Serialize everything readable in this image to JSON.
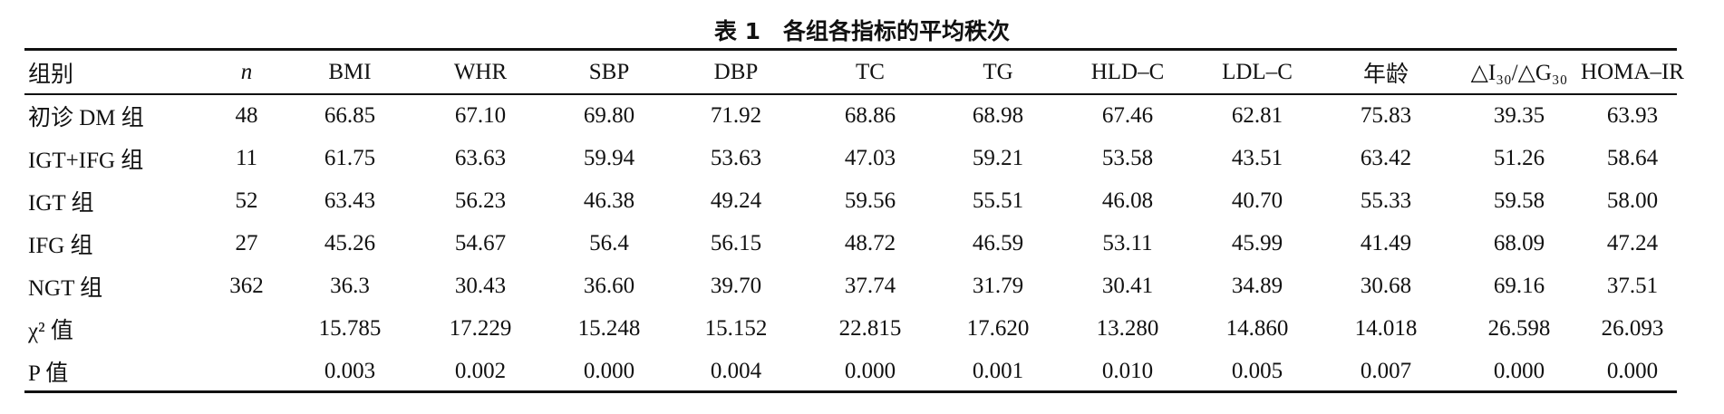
{
  "table": {
    "title": "表 1　各组各指标的平均秩次",
    "header": [
      "组别",
      "n",
      "BMI",
      "WHR",
      "SBP",
      "DBP",
      "TC",
      "TG",
      "HLD–C",
      "LDL–C",
      "年龄",
      "△I₃₀/△G₃₀",
      "HOMA–IR"
    ],
    "rows": [
      [
        "初诊 DM 组",
        "48",
        "66.85",
        "67.10",
        "69.80",
        "71.92",
        "68.86",
        "68.98",
        "67.46",
        "62.81",
        "75.83",
        "39.35",
        "63.93"
      ],
      [
        "IGT+IFG 组",
        "11",
        "61.75",
        "63.63",
        "59.94",
        "53.63",
        "47.03",
        "59.21",
        "53.58",
        "43.51",
        "63.42",
        "51.26",
        "58.64"
      ],
      [
        "IGT 组",
        "52",
        "63.43",
        "56.23",
        "46.38",
        "49.24",
        "59.56",
        "55.51",
        "46.08",
        "40.70",
        "55.33",
        "59.58",
        "58.00"
      ],
      [
        "IFG 组",
        "27",
        "45.26",
        "54.67",
        "56.4",
        "56.15",
        "48.72",
        "46.59",
        "53.11",
        "45.99",
        "41.49",
        "68.09",
        "47.24"
      ],
      [
        "NGT 组",
        "362",
        "36.3",
        "30.43",
        "36.60",
        "39.70",
        "37.74",
        "31.79",
        "30.41",
        "34.89",
        "30.68",
        "69.16",
        "37.51"
      ],
      [
        "χ² 值",
        null,
        "15.785",
        "17.229",
        "15.248",
        "15.152",
        "22.815",
        "17.620",
        "13.280",
        "14.860",
        "14.018",
        "26.598",
        "26.093"
      ],
      [
        "P 值",
        null,
        "0.003",
        "0.002",
        "0.000",
        "0.004",
        "0.000",
        "0.001",
        "0.010",
        "0.005",
        "0.007",
        "0.000",
        "0.000"
      ]
    ]
  }
}
